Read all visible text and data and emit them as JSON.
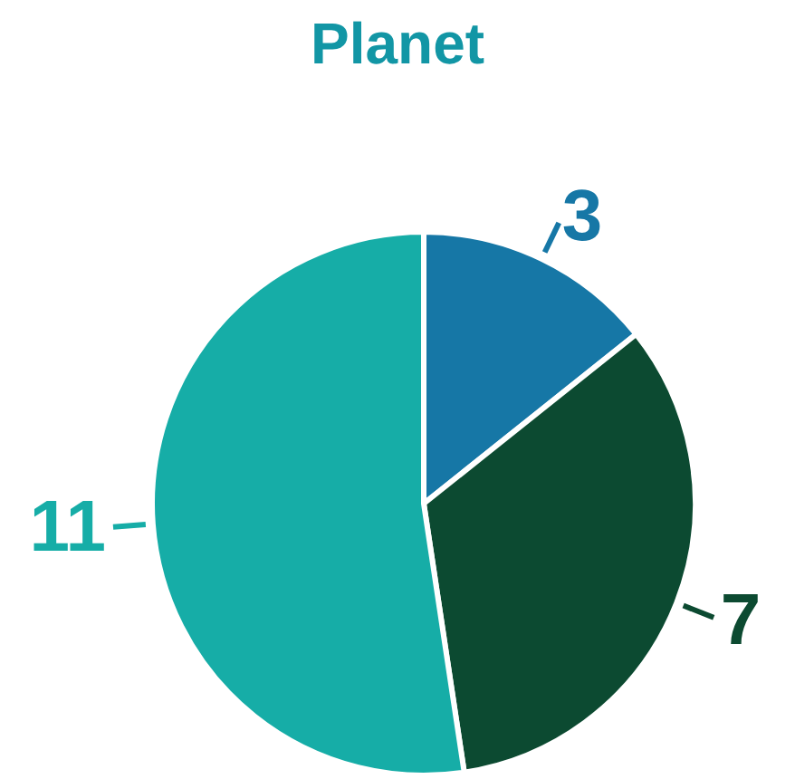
{
  "chart_data": {
    "type": "pie",
    "title": "Planet",
    "categories": [
      null,
      null,
      null
    ],
    "values": [
      3,
      7,
      11
    ],
    "colors": [
      "#1677a6",
      "#0c4a31",
      "#16ada7"
    ],
    "data_labels": true
  }
}
